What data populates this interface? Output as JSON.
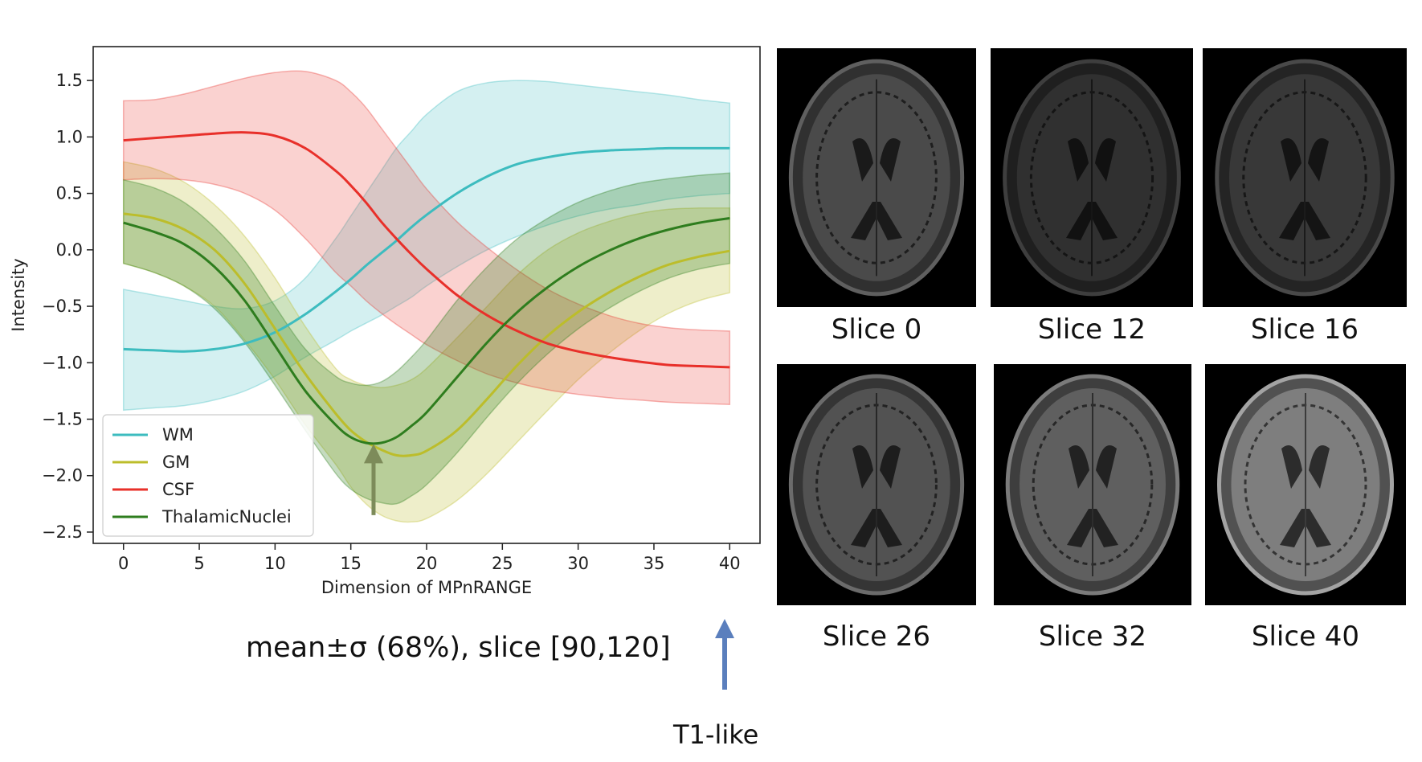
{
  "chart_data": {
    "type": "line",
    "xlabel": "Dimension of MPnRANGE",
    "ylabel": "Intensity",
    "xlim": [
      -2,
      42
    ],
    "ylim": [
      -2.6,
      1.8
    ],
    "xticks": [
      0,
      5,
      10,
      15,
      20,
      25,
      30,
      35,
      40
    ],
    "yticks": [
      1.5,
      1.0,
      0.5,
      0.0,
      -0.5,
      -1.0,
      -1.5,
      -2.0,
      -2.5
    ],
    "ytick_labels": [
      "1.5",
      "1.0",
      "0.5",
      "0.0",
      "−0.5",
      "−1.0",
      "−1.5",
      "−2.0",
      "−2.5"
    ],
    "legend_position": "lower-left",
    "bands": "mean ± σ shaded",
    "x": [
      0,
      2,
      4,
      6,
      8,
      10,
      12,
      14,
      15,
      16,
      17,
      18,
      19,
      20,
      22,
      24,
      26,
      28,
      30,
      32,
      34,
      36,
      38,
      40
    ],
    "series": [
      {
        "name": "WM",
        "color": "#3dbcbf",
        "band_alpha": 0.22,
        "mean": [
          -0.88,
          -0.89,
          -0.9,
          -0.88,
          -0.83,
          -0.73,
          -0.57,
          -0.37,
          -0.26,
          -0.14,
          -0.03,
          0.08,
          0.2,
          0.31,
          0.5,
          0.65,
          0.76,
          0.82,
          0.86,
          0.88,
          0.89,
          0.9,
          0.9,
          0.9
        ],
        "upper": [
          -0.35,
          -0.4,
          -0.45,
          -0.5,
          -0.52,
          -0.45,
          -0.25,
          0.1,
          0.3,
          0.5,
          0.7,
          0.9,
          1.05,
          1.2,
          1.4,
          1.48,
          1.5,
          1.49,
          1.46,
          1.43,
          1.4,
          1.37,
          1.33,
          1.3
        ],
        "lower": [
          -1.42,
          -1.4,
          -1.38,
          -1.33,
          -1.25,
          -1.12,
          -0.95,
          -0.8,
          -0.72,
          -0.65,
          -0.58,
          -0.5,
          -0.42,
          -0.32,
          -0.15,
          0.0,
          0.12,
          0.22,
          0.3,
          0.36,
          0.4,
          0.45,
          0.48,
          0.5
        ]
      },
      {
        "name": "GM",
        "color": "#bcbd2b",
        "band_alpha": 0.25,
        "mean": [
          0.32,
          0.28,
          0.18,
          0.0,
          -0.3,
          -0.7,
          -1.1,
          -1.45,
          -1.6,
          -1.7,
          -1.77,
          -1.82,
          -1.82,
          -1.78,
          -1.6,
          -1.32,
          -1.02,
          -0.76,
          -0.55,
          -0.38,
          -0.24,
          -0.13,
          -0.06,
          -0.01
        ],
        "upper": [
          0.78,
          0.72,
          0.6,
          0.4,
          0.12,
          -0.25,
          -0.68,
          -1.05,
          -1.15,
          -1.2,
          -1.22,
          -1.2,
          -1.15,
          -1.05,
          -0.78,
          -0.5,
          -0.22,
          0.0,
          0.15,
          0.25,
          0.32,
          0.36,
          0.37,
          0.37
        ],
        "lower": [
          -0.12,
          -0.2,
          -0.32,
          -0.5,
          -0.8,
          -1.15,
          -1.55,
          -1.9,
          -2.1,
          -2.25,
          -2.35,
          -2.4,
          -2.41,
          -2.38,
          -2.22,
          -1.98,
          -1.7,
          -1.42,
          -1.15,
          -0.92,
          -0.72,
          -0.56,
          -0.45,
          -0.38
        ]
      },
      {
        "name": "CSF",
        "color": "#e8302a",
        "band_alpha": 0.22,
        "mean": [
          0.97,
          0.99,
          1.01,
          1.03,
          1.04,
          1.01,
          0.9,
          0.7,
          0.57,
          0.42,
          0.25,
          0.1,
          -0.04,
          -0.17,
          -0.4,
          -0.58,
          -0.72,
          -0.83,
          -0.9,
          -0.95,
          -0.99,
          -1.02,
          -1.03,
          -1.04
        ],
        "upper": [
          1.32,
          1.33,
          1.38,
          1.45,
          1.52,
          1.57,
          1.58,
          1.5,
          1.4,
          1.26,
          1.08,
          0.9,
          0.72,
          0.54,
          0.25,
          0.02,
          -0.18,
          -0.35,
          -0.48,
          -0.58,
          -0.65,
          -0.69,
          -0.71,
          -0.72
        ],
        "lower": [
          0.62,
          0.63,
          0.62,
          0.58,
          0.5,
          0.35,
          0.1,
          -0.2,
          -0.32,
          -0.45,
          -0.56,
          -0.66,
          -0.75,
          -0.84,
          -0.98,
          -1.1,
          -1.18,
          -1.24,
          -1.28,
          -1.31,
          -1.33,
          -1.35,
          -1.36,
          -1.37
        ]
      },
      {
        "name": "ThalamicNuclei",
        "color": "#2e7d1e",
        "band_alpha": 0.28,
        "mean": [
          0.24,
          0.16,
          0.05,
          -0.15,
          -0.45,
          -0.85,
          -1.25,
          -1.55,
          -1.66,
          -1.71,
          -1.71,
          -1.66,
          -1.56,
          -1.44,
          -1.13,
          -0.82,
          -0.55,
          -0.33,
          -0.15,
          -0.01,
          0.1,
          0.18,
          0.24,
          0.28
        ],
        "upper": [
          0.62,
          0.55,
          0.42,
          0.2,
          -0.1,
          -0.5,
          -0.88,
          -1.12,
          -1.18,
          -1.2,
          -1.17,
          -1.08,
          -0.95,
          -0.8,
          -0.45,
          -0.15,
          0.1,
          0.28,
          0.42,
          0.52,
          0.59,
          0.63,
          0.66,
          0.68
        ],
        "lower": [
          -0.12,
          -0.2,
          -0.32,
          -0.52,
          -0.82,
          -1.2,
          -1.6,
          -1.98,
          -2.12,
          -2.2,
          -2.24,
          -2.25,
          -2.18,
          -2.08,
          -1.8,
          -1.48,
          -1.18,
          -0.92,
          -0.7,
          -0.52,
          -0.37,
          -0.25,
          -0.17,
          -0.12
        ]
      }
    ],
    "arrow_marker": {
      "x": 16.5,
      "y_from": -2.35,
      "y_to": -1.72,
      "color": "#7d8b5a"
    }
  },
  "notes": {
    "band_text": "mean±σ (68%), slice [90,120]",
    "t1_label": "T1-like",
    "t1_arrow_color": "#5b7fbd"
  },
  "slices": [
    {
      "label": "Slice 0",
      "brightness": 0.34
    },
    {
      "label": "Slice 12",
      "brightness": 0.22
    },
    {
      "label": "Slice 16",
      "brightness": 0.26
    },
    {
      "label": "Slice 26",
      "brightness": 0.38
    },
    {
      "label": "Slice 32",
      "brightness": 0.44
    },
    {
      "label": "Slice 40",
      "brightness": 0.58
    }
  ]
}
